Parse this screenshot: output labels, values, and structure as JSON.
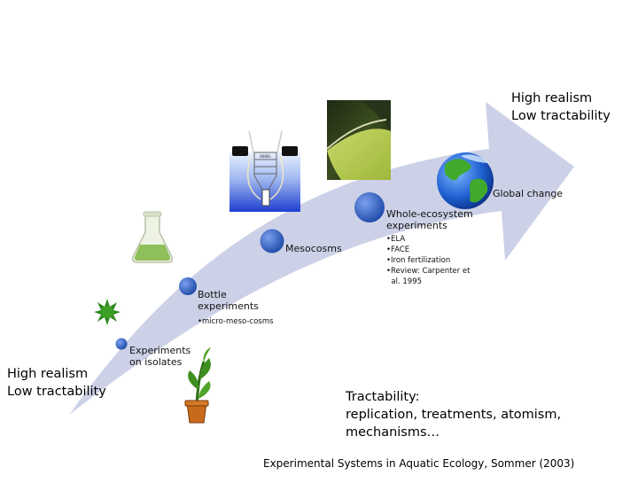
{
  "slide": {
    "start_label": [
      "High realism",
      "Low tractability"
    ],
    "end_label": [
      "High realism",
      "Low tractability"
    ],
    "stages": [
      {
        "label": [
          "Experiments",
          "on isolates"
        ],
        "bullets": []
      },
      {
        "label": [
          "Bottle",
          "experiments"
        ],
        "bullets": [
          "•micro-meso-cosms"
        ]
      },
      {
        "label": [
          "Mesocosms"
        ],
        "bullets": []
      },
      {
        "label": [
          "Whole-ecosystem",
          "experiments"
        ],
        "bullets": [
          "•ELA",
          "•FACE",
          "•Iron fertilization",
          "•Review: Carpenter et",
          "  al. 1995"
        ]
      },
      {
        "label": [
          "Global change"
        ],
        "bullets": []
      }
    ],
    "tractability": [
      "Tractability:",
      "replication, treatments, atomism,",
      "mechanisms…"
    ],
    "citation": "Experimental Systems in Aquatic Ecology, Sommer (2003)",
    "mesocosm_sign": "6000L",
    "colors": {
      "arrow": "#c9cfe6",
      "dot": "#3d6fd0",
      "dot_dark": "#1f4aa8",
      "flask": "#8fbf5a",
      "microbe": "#2f8a1e"
    }
  }
}
